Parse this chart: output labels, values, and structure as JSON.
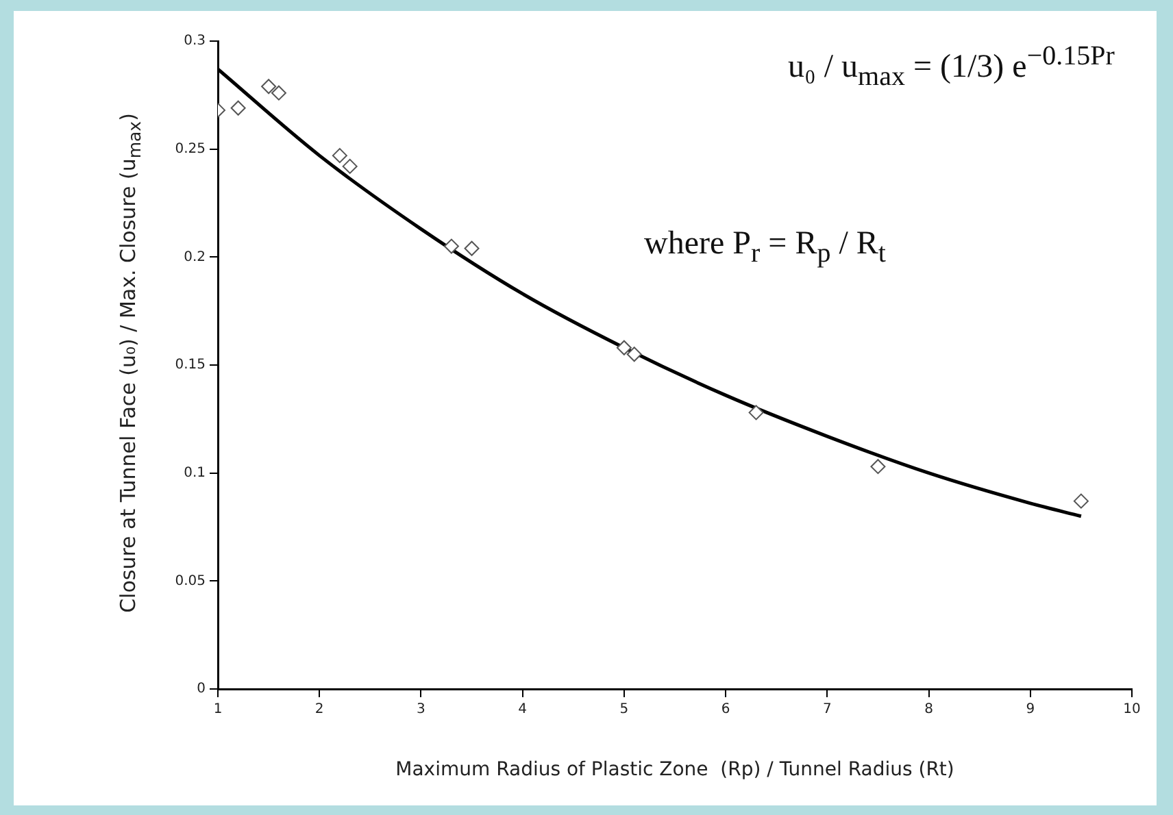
{
  "chart_data": {
    "type": "scatter",
    "xlabel": "Maximum Radius of Plastic Zone  (Rp) / Tunnel Radius (Rt)",
    "ylabel": "Closure at Tunnel Face (u₀) / Max. Closure (u$_{max}$)",
    "annotations": [
      "u₀ / u$_{max}$ = (1/3) e$^{−0.15Pr}$",
      "where  P$_{r}$ = R$_{p}$ / R$_{t}$"
    ],
    "xlim": [
      1,
      10
    ],
    "xticks": [
      1,
      2,
      3,
      4,
      5,
      6,
      7,
      8,
      9,
      10
    ],
    "ylim": [
      0,
      0.3
    ],
    "yticks": [
      0,
      0.05,
      0.1,
      0.15,
      0.2,
      0.25,
      0.3
    ],
    "grid": false,
    "legend": false,
    "series": [
      {
        "color": "#555555",
        "marker": "diamond",
        "x": [
          1,
          1.2,
          1.5,
          1.6,
          2.2,
          2.3,
          3.3,
          3.5,
          5,
          5.1,
          6.3,
          7.5,
          9.5
        ],
        "values": [
          0.268,
          0.269,
          0.279,
          0.276,
          0.247,
          0.242,
          0.205,
          0.204,
          0.158,
          0.155,
          0.128,
          0.103,
          0.087
        ]
      },
      {
        "type": "line",
        "color": "#000000",
        "marker": "none",
        "line_style": "solid",
        "x": [
          1,
          2,
          3,
          4,
          5,
          6,
          7,
          8,
          9,
          9.5
        ],
        "values": [
          0.287,
          0.247,
          0.213,
          0.183,
          0.158,
          0.136,
          0.117,
          0.1,
          0.086,
          0.08
        ]
      }
    ]
  }
}
